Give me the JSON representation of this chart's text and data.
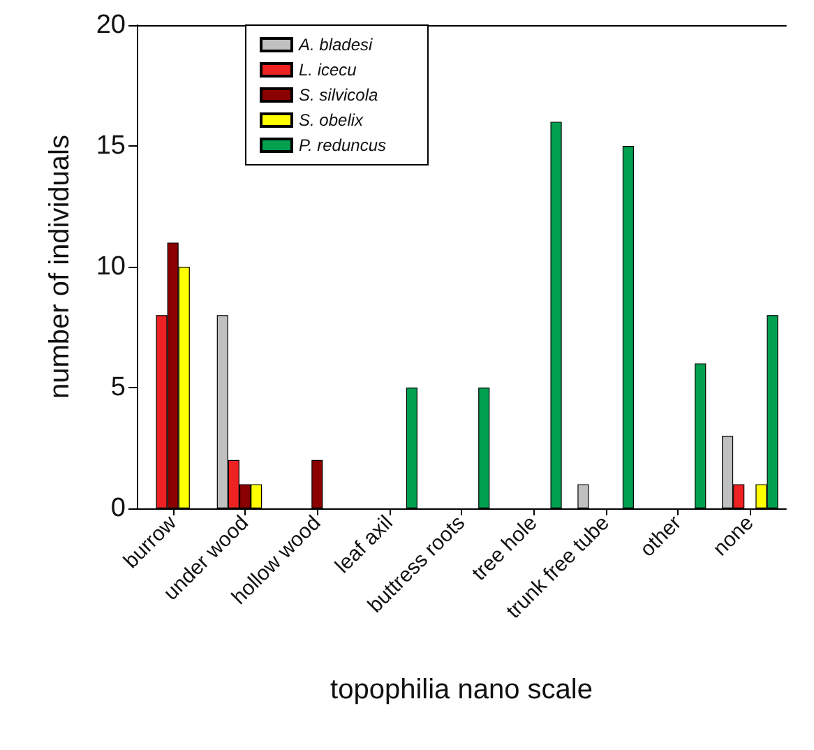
{
  "chart_data": {
    "type": "bar",
    "xlabel": "topophilia nano scale",
    "ylabel": "number of individuals",
    "categories": [
      "burrow",
      "under wood",
      "hollow wood",
      "leaf axil",
      "buttress roots",
      "tree hole",
      "trunk free tube",
      "other",
      "none"
    ],
    "series": [
      {
        "name": "A. bladesi",
        "color": "#c0c0c0",
        "values": [
          null,
          8,
          null,
          null,
          null,
          null,
          1,
          null,
          3
        ]
      },
      {
        "name": "L. icecu",
        "color": "#ee2222",
        "values": [
          8,
          2,
          null,
          null,
          null,
          null,
          null,
          null,
          1
        ]
      },
      {
        "name": "S. silvicola",
        "color": "#8b0000",
        "values": [
          11,
          1,
          2,
          null,
          null,
          null,
          null,
          null,
          null
        ]
      },
      {
        "name": "S. obelix",
        "color": "#ffff00",
        "values": [
          10,
          1,
          null,
          null,
          null,
          null,
          null,
          null,
          1
        ]
      },
      {
        "name": "P. reduncus",
        "color": "#00a050",
        "values": [
          null,
          null,
          null,
          5,
          5,
          16,
          15,
          6,
          8
        ]
      }
    ],
    "ylim": [
      0,
      20
    ],
    "yticks": [
      0,
      5,
      10,
      15,
      20
    ],
    "grid": false,
    "legend": "top left"
  }
}
